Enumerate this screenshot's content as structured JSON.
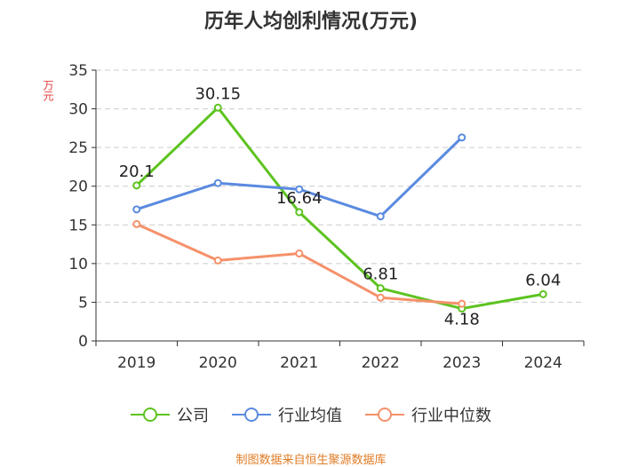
{
  "chart_data": {
    "type": "line",
    "title": "历年人均创利情况(万元)",
    "y_unit": "万元",
    "categories": [
      "2019",
      "2020",
      "2021",
      "2022",
      "2023",
      "2024"
    ],
    "ylim": [
      0,
      35
    ],
    "yticks": [
      0,
      5,
      10,
      15,
      20,
      25,
      30,
      35
    ],
    "grid": true,
    "legend_position": "bottom",
    "series": [
      {
        "name": "公司",
        "color": "#5cc31f",
        "values": [
          20.1,
          30.15,
          16.64,
          6.81,
          4.18,
          6.04
        ],
        "labels": [
          "20.1",
          "30.15",
          "16.64",
          "6.81",
          "4.18",
          "6.04"
        ]
      },
      {
        "name": "行业均值",
        "color": "#5a8ae0",
        "values": [
          17.0,
          20.4,
          19.6,
          16.1,
          26.3,
          null
        ]
      },
      {
        "name": "行业中位数",
        "color": "#f5916a",
        "values": [
          15.1,
          10.4,
          11.3,
          5.6,
          4.8,
          null
        ]
      }
    ]
  },
  "source": "制图数据来自恒生聚源数据库"
}
